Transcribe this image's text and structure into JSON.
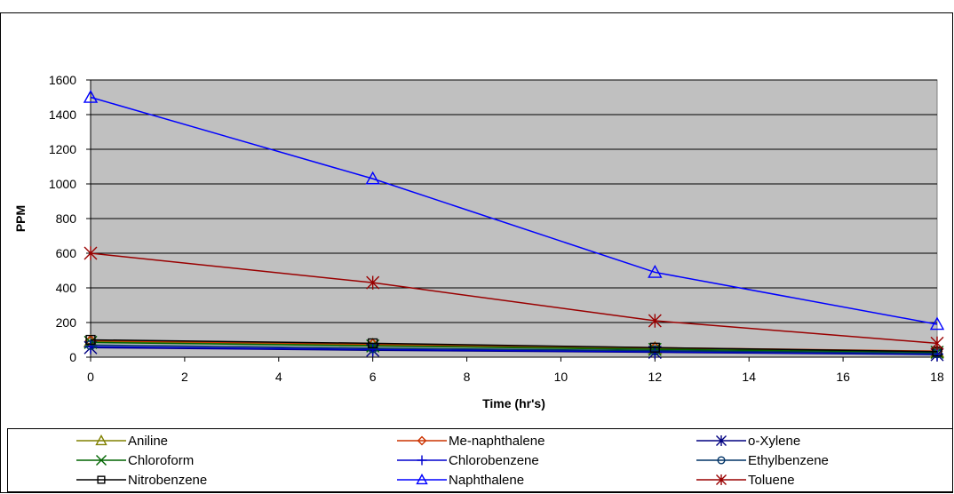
{
  "chart_data": {
    "type": "line",
    "title": "",
    "xlabel": "Time (hr's)",
    "ylabel": "PPM",
    "xlim": [
      0,
      18
    ],
    "ylim": [
      0,
      1600
    ],
    "xticks": [
      0,
      2,
      4,
      6,
      8,
      10,
      12,
      14,
      16,
      18
    ],
    "yticks": [
      0,
      200,
      400,
      600,
      800,
      1000,
      1200,
      1400,
      1600
    ],
    "grid": "horizontal",
    "plot_background": "#c0c0c0",
    "legend_position": "bottom",
    "x": [
      0,
      6,
      12,
      18
    ],
    "series": [
      {
        "name": "Aniline",
        "values": [
          90,
          70,
          50,
          30
        ],
        "color": "#808000",
        "marker": "triangle-open"
      },
      {
        "name": "Me-naphthalene",
        "values": [
          95,
          75,
          55,
          35
        ],
        "color": "#cc3300",
        "marker": "diamond-open"
      },
      {
        "name": "o-Xylene",
        "values": [
          55,
          40,
          28,
          15
        ],
        "color": "#000080",
        "marker": "asterisk"
      },
      {
        "name": "Chloroform",
        "values": [
          85,
          65,
          45,
          28
        ],
        "color": "#006400",
        "marker": "x"
      },
      {
        "name": "Chlorobenzene",
        "values": [
          60,
          45,
          32,
          18
        ],
        "color": "#0000cd",
        "marker": "plus"
      },
      {
        "name": "Ethylbenzene",
        "values": [
          70,
          52,
          38,
          22
        ],
        "color": "#003366",
        "marker": "circle-open"
      },
      {
        "name": "Nitrobenzene",
        "values": [
          100,
          80,
          55,
          32
        ],
        "color": "#000000",
        "marker": "square-open"
      },
      {
        "name": "Naphthalene",
        "values": [
          1500,
          1030,
          490,
          190
        ],
        "color": "#0000ff",
        "marker": "triangle-open"
      },
      {
        "name": "Toluene",
        "values": [
          600,
          430,
          210,
          80
        ],
        "color": "#990000",
        "marker": "asterisk"
      }
    ]
  }
}
